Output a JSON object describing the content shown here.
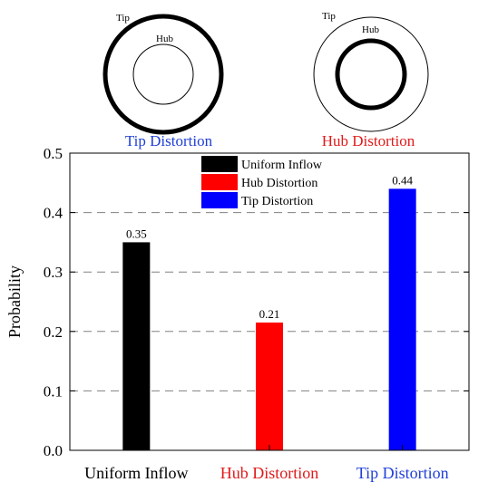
{
  "diagrams": {
    "left": {
      "outer_label": "Tip",
      "inner_label": "Hub",
      "caption": "Tip Distortion",
      "caption_color": "#1f3fd6"
    },
    "right": {
      "outer_label": "Tip",
      "inner_label": "Hub",
      "caption": "Hub Distortion",
      "caption_color": "#e01a1a"
    }
  },
  "chart_data": {
    "type": "bar",
    "ylabel": "Probability",
    "ylim": [
      0,
      0.5
    ],
    "yticks": [
      "0.0",
      "0.1",
      "0.2",
      "0.3",
      "0.4",
      "0.5"
    ],
    "grid": "dashed horizontal",
    "legend_position": "top-center",
    "categories": [
      "Uniform Inflow",
      "Hub Distortion",
      "Tip Distortion"
    ],
    "category_label_colors": [
      "#000000",
      "#e01a1a",
      "#1f3fd6"
    ],
    "values": [
      0.35,
      0.215,
      0.44
    ],
    "data_labels": [
      "0.35",
      "0.21",
      "0.44"
    ],
    "colors": [
      "#000000",
      "#ff0000",
      "#0000ff"
    ],
    "legend": [
      "Uniform Inflow",
      "Hub Distortion",
      "Tip Distortion"
    ]
  }
}
